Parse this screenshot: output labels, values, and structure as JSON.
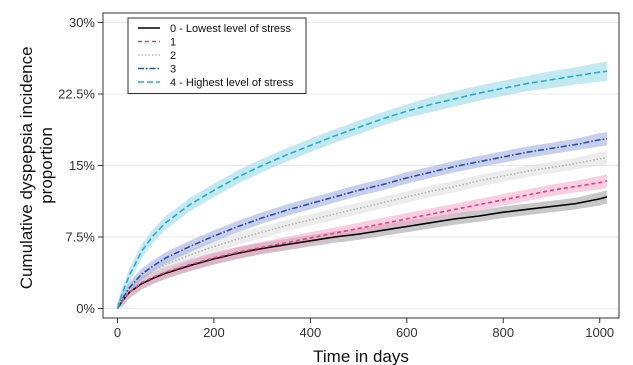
{
  "chart_data": {
    "type": "line",
    "title": "",
    "xlabel": "Time in days",
    "ylabel": "Cumulative dyspepsia incidence proportion",
    "ylabel_lines": [
      "Cumulative dyspepsia incidence",
      "proportion"
    ],
    "xlim": [
      -30,
      1040
    ],
    "ylim": [
      -0.01,
      0.31
    ],
    "x_ticks": [
      0,
      200,
      400,
      600,
      800,
      1000
    ],
    "x_tick_labels": [
      "0",
      "200",
      "400",
      "600",
      "800",
      "1000"
    ],
    "y_ticks": [
      0,
      0.075,
      0.15,
      0.225,
      0.3
    ],
    "y_tick_labels": [
      "0%",
      "7.5%",
      "15%",
      "22.5%",
      "30%"
    ],
    "grid": true,
    "legend_position": "top-left",
    "series": [
      {
        "name": "0 - Lowest level of stress",
        "color": "#000000",
        "band_color": "#9a9a9a",
        "dash": "",
        "x": [
          0,
          10,
          25,
          50,
          75,
          100,
          150,
          200,
          250,
          300,
          350,
          400,
          450,
          500,
          550,
          600,
          650,
          700,
          750,
          800,
          850,
          900,
          950,
          1000,
          1015
        ],
        "y": [
          0,
          0.008,
          0.017,
          0.026,
          0.032,
          0.037,
          0.045,
          0.052,
          0.058,
          0.063,
          0.067,
          0.071,
          0.075,
          0.078,
          0.082,
          0.086,
          0.09,
          0.094,
          0.097,
          0.101,
          0.104,
          0.107,
          0.11,
          0.115,
          0.117
        ],
        "band": [
          0.006,
          0.006,
          0.006,
          0.006,
          0.006,
          0.006,
          0.006,
          0.006,
          0.006,
          0.006,
          0.006,
          0.006,
          0.006,
          0.006,
          0.006,
          0.006,
          0.006,
          0.006,
          0.006,
          0.006,
          0.006,
          0.006,
          0.006,
          0.007,
          0.007
        ]
      },
      {
        "name": "1",
        "color": "#e0417f",
        "band_color": "#f2a6c6",
        "dash": "4,3",
        "x": [
          0,
          10,
          25,
          50,
          75,
          100,
          150,
          200,
          250,
          300,
          350,
          400,
          450,
          500,
          550,
          600,
          650,
          700,
          750,
          800,
          850,
          900,
          950,
          1000,
          1015
        ],
        "y": [
          0,
          0.008,
          0.017,
          0.027,
          0.033,
          0.038,
          0.046,
          0.053,
          0.059,
          0.064,
          0.069,
          0.074,
          0.079,
          0.084,
          0.089,
          0.094,
          0.099,
          0.104,
          0.109,
          0.114,
          0.119,
          0.124,
          0.128,
          0.132,
          0.134
        ],
        "band": [
          0.006,
          0.006,
          0.006,
          0.006,
          0.006,
          0.006,
          0.006,
          0.006,
          0.006,
          0.006,
          0.006,
          0.006,
          0.006,
          0.006,
          0.006,
          0.006,
          0.006,
          0.006,
          0.006,
          0.006,
          0.006,
          0.006,
          0.006,
          0.007,
          0.007
        ]
      },
      {
        "name": "2",
        "color": "#b5b5b5",
        "band_color": "#dcdcdc",
        "dash": "1.5,2",
        "x": [
          0,
          10,
          25,
          50,
          75,
          100,
          150,
          200,
          250,
          300,
          350,
          400,
          450,
          500,
          550,
          600,
          650,
          700,
          750,
          800,
          850,
          900,
          950,
          1000,
          1015
        ],
        "y": [
          0,
          0.009,
          0.02,
          0.032,
          0.04,
          0.046,
          0.056,
          0.065,
          0.073,
          0.08,
          0.087,
          0.093,
          0.099,
          0.105,
          0.111,
          0.117,
          0.123,
          0.128,
          0.134,
          0.139,
          0.144,
          0.148,
          0.152,
          0.157,
          0.158
        ],
        "band": [
          0.006,
          0.006,
          0.006,
          0.006,
          0.006,
          0.006,
          0.006,
          0.006,
          0.006,
          0.006,
          0.006,
          0.006,
          0.006,
          0.006,
          0.006,
          0.006,
          0.006,
          0.006,
          0.006,
          0.006,
          0.006,
          0.006,
          0.006,
          0.007,
          0.007
        ]
      },
      {
        "name": "3",
        "color": "#2a52a6",
        "band_color": "#9aa8df",
        "dash": "6,2,1.5,2",
        "x": [
          0,
          10,
          25,
          50,
          75,
          100,
          150,
          200,
          250,
          300,
          350,
          400,
          450,
          500,
          550,
          600,
          650,
          700,
          750,
          800,
          850,
          900,
          950,
          1000,
          1015
        ],
        "y": [
          0,
          0.01,
          0.022,
          0.036,
          0.045,
          0.053,
          0.065,
          0.076,
          0.086,
          0.095,
          0.103,
          0.11,
          0.117,
          0.124,
          0.13,
          0.137,
          0.143,
          0.149,
          0.154,
          0.159,
          0.164,
          0.168,
          0.172,
          0.177,
          0.178
        ],
        "band": [
          0.006,
          0.006,
          0.006,
          0.006,
          0.006,
          0.006,
          0.006,
          0.006,
          0.006,
          0.006,
          0.006,
          0.006,
          0.006,
          0.006,
          0.006,
          0.006,
          0.006,
          0.006,
          0.006,
          0.006,
          0.006,
          0.006,
          0.006,
          0.007,
          0.007
        ]
      },
      {
        "name": "4 - Highest level of stress",
        "color": "#1fb1cc",
        "band_color": "#8fd7e5",
        "dash": "6,3",
        "x": [
          0,
          10,
          25,
          50,
          75,
          100,
          150,
          200,
          250,
          300,
          350,
          400,
          450,
          500,
          550,
          600,
          650,
          700,
          750,
          800,
          850,
          900,
          950,
          1000,
          1015
        ],
        "y": [
          0,
          0.016,
          0.035,
          0.06,
          0.077,
          0.09,
          0.109,
          0.124,
          0.138,
          0.15,
          0.161,
          0.171,
          0.181,
          0.19,
          0.199,
          0.207,
          0.214,
          0.22,
          0.226,
          0.231,
          0.236,
          0.24,
          0.244,
          0.248,
          0.249
        ],
        "band": [
          0.006,
          0.007,
          0.007,
          0.007,
          0.007,
          0.007,
          0.007,
          0.007,
          0.007,
          0.007,
          0.007,
          0.007,
          0.007,
          0.007,
          0.007,
          0.007,
          0.008,
          0.008,
          0.008,
          0.008,
          0.008,
          0.009,
          0.009,
          0.01,
          0.01
        ]
      }
    ]
  }
}
